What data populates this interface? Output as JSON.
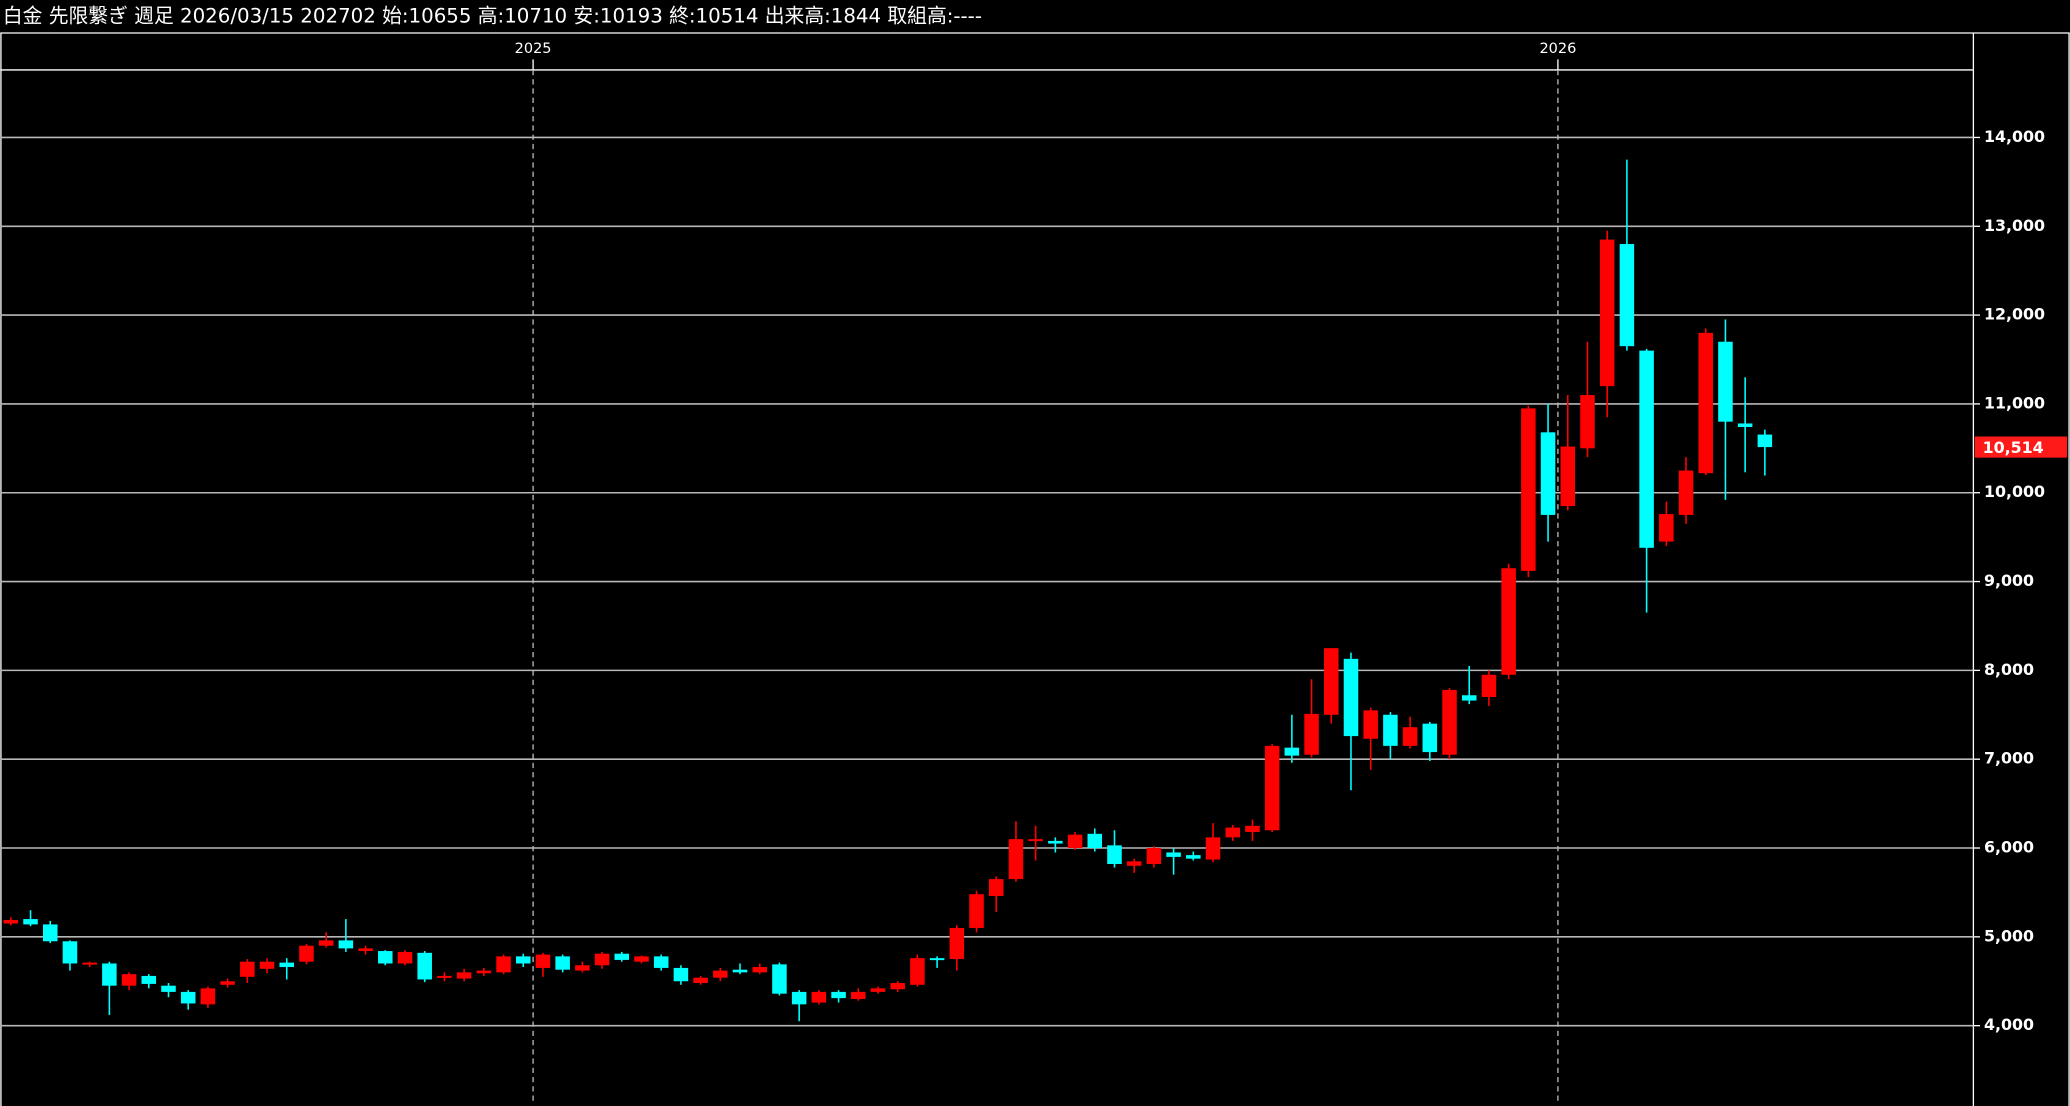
{
  "chart_data": {
    "type": "candlestick",
    "title": "白金 先限繋ぎ 週足 2026/03/15 202702 始:10655 高:10710 安:10193 終:10514 出来高:1844 取組高:----",
    "categories": [
      null,
      null,
      null,
      null,
      null,
      null,
      null,
      null,
      null,
      null,
      null,
      null,
      null,
      null,
      null,
      null,
      null,
      null,
      null,
      null,
      null,
      null,
      null,
      null,
      null,
      null,
      null,
      "2025",
      null,
      null,
      null,
      null,
      null,
      null,
      null,
      null,
      null,
      null,
      null,
      null,
      null,
      null,
      null,
      null,
      null,
      null,
      null,
      null,
      null,
      null,
      null,
      null,
      null,
      null,
      null,
      null,
      null,
      null,
      null,
      null,
      null,
      null,
      null,
      null,
      null,
      null,
      null,
      null,
      null,
      null,
      null,
      null,
      null,
      null,
      null,
      null,
      null,
      null,
      null,
      "2026",
      null,
      null,
      null,
      null,
      null,
      null,
      null,
      null,
      null,
      null
    ],
    "open": [
      5150,
      5200,
      5140,
      4950,
      4690,
      4700,
      4450,
      4560,
      4450,
      4380,
      4240,
      4460,
      4550,
      4640,
      4710,
      4720,
      4900,
      4960,
      4840,
      4840,
      4700,
      4820,
      4550,
      4530,
      4590,
      4600,
      4780,
      4650,
      4780,
      4620,
      4680,
      4810,
      4720,
      4780,
      4650,
      4480,
      4540,
      4630,
      4600,
      4690,
      4380,
      4260,
      4380,
      4300,
      4380,
      4410,
      4460,
      4760,
      4750,
      5100,
      5460,
      5650,
      6080,
      6080,
      6000,
      6160,
      6030,
      5800,
      5820,
      5950,
      5920,
      5870,
      6120,
      6180,
      6200,
      7130,
      7050,
      7500,
      8130,
      7230,
      7500,
      7150,
      7400,
      7050,
      7720,
      7700,
      7950,
      9120,
      10680,
      9850,
      10500,
      11200,
      12800,
      11600,
      9450,
      9750,
      10220,
      11700,
      10780,
      10655
    ],
    "high": [
      5220,
      5300,
      5180,
      4960,
      4720,
      4720,
      4600,
      4580,
      4480,
      4400,
      4440,
      4530,
      4750,
      4760,
      4760,
      4920,
      5050,
      5200,
      4900,
      4850,
      4850,
      4840,
      4600,
      4640,
      4650,
      4800,
      4810,
      4820,
      4800,
      4720,
      4830,
      4830,
      4790,
      4800,
      4680,
      4560,
      4650,
      4700,
      4700,
      4710,
      4400,
      4400,
      4400,
      4420,
      4440,
      4500,
      4800,
      4780,
      5130,
      5520,
      5680,
      6300,
      6250,
      6120,
      6180,
      6220,
      6200,
      5880,
      6020,
      6000,
      5960,
      6280,
      6260,
      6320,
      7170,
      7500,
      7900,
      8250,
      8200,
      7580,
      7530,
      7480,
      7420,
      7800,
      8050,
      8000,
      9200,
      10980,
      11000,
      11100,
      11700,
      12950,
      13750,
      11620,
      9900,
      10400,
      11850,
      11950,
      11300,
      10710
    ],
    "low": [
      5130,
      5120,
      4930,
      4620,
      4660,
      4120,
      4400,
      4420,
      4320,
      4180,
      4200,
      4430,
      4480,
      4590,
      4520,
      4690,
      4880,
      4830,
      4800,
      4680,
      4680,
      4490,
      4500,
      4500,
      4560,
      4580,
      4660,
      4550,
      4600,
      4600,
      4640,
      4720,
      4700,
      4620,
      4460,
      4460,
      4500,
      4580,
      4580,
      4340,
      4050,
      4240,
      4260,
      4280,
      4360,
      4380,
      4440,
      4650,
      4620,
      5050,
      5280,
      5620,
      5860,
      5950,
      5980,
      5960,
      5780,
      5720,
      5780,
      5700,
      5860,
      5840,
      6080,
      6080,
      6180,
      6960,
      7020,
      7400,
      6650,
      6880,
      7000,
      7120,
      6980,
      7000,
      7620,
      7600,
      7900,
      9050,
      9450,
      9800,
      10400,
      10850,
      11600,
      8650,
      9400,
      9650,
      10200,
      9920,
      10230,
      10193
    ],
    "close": [
      5190,
      5140,
      4950,
      4700,
      4710,
      4450,
      4580,
      4470,
      4380,
      4250,
      4420,
      4500,
      4720,
      4720,
      4660,
      4900,
      4960,
      4870,
      4870,
      4700,
      4830,
      4520,
      4560,
      4600,
      4620,
      4780,
      4700,
      4800,
      4630,
      4680,
      4810,
      4740,
      4780,
      4650,
      4500,
      4540,
      4620,
      4600,
      4660,
      4360,
      4240,
      4380,
      4310,
      4380,
      4420,
      4480,
      4760,
      4740,
      5100,
      5480,
      5650,
      6100,
      6100,
      6050,
      6150,
      6000,
      5820,
      5850,
      6000,
      5900,
      5880,
      6120,
      6230,
      6250,
      7150,
      7040,
      7510,
      8250,
      7260,
      7550,
      7150,
      7360,
      7080,
      7780,
      7660,
      7950,
      9150,
      10950,
      9750,
      10520,
      11100,
      12850,
      11650,
      9380,
      9760,
      10250,
      11800,
      10800,
      10740,
      10514
    ],
    "up_color": "#ff0000",
    "down_color": "#00ffff",
    "ylim": [
      3140,
      14760
    ],
    "yticks": [
      {
        "value": 4000,
        "label": "4,000"
      },
      {
        "value": 5000,
        "label": "5,000"
      },
      {
        "value": 6000,
        "label": "6,000"
      },
      {
        "value": 7000,
        "label": "7,000"
      },
      {
        "value": 8000,
        "label": "8,000"
      },
      {
        "value": 9000,
        "label": "9,000"
      },
      {
        "value": 10000,
        "label": "10,000"
      },
      {
        "value": 11000,
        "label": "11,000"
      },
      {
        "value": 12000,
        "label": "12,000"
      },
      {
        "value": 13000,
        "label": "13,000"
      },
      {
        "value": 14000,
        "label": "14,000"
      }
    ],
    "last_price": {
      "value": 10514,
      "label": "10,514"
    },
    "grid": true
  }
}
